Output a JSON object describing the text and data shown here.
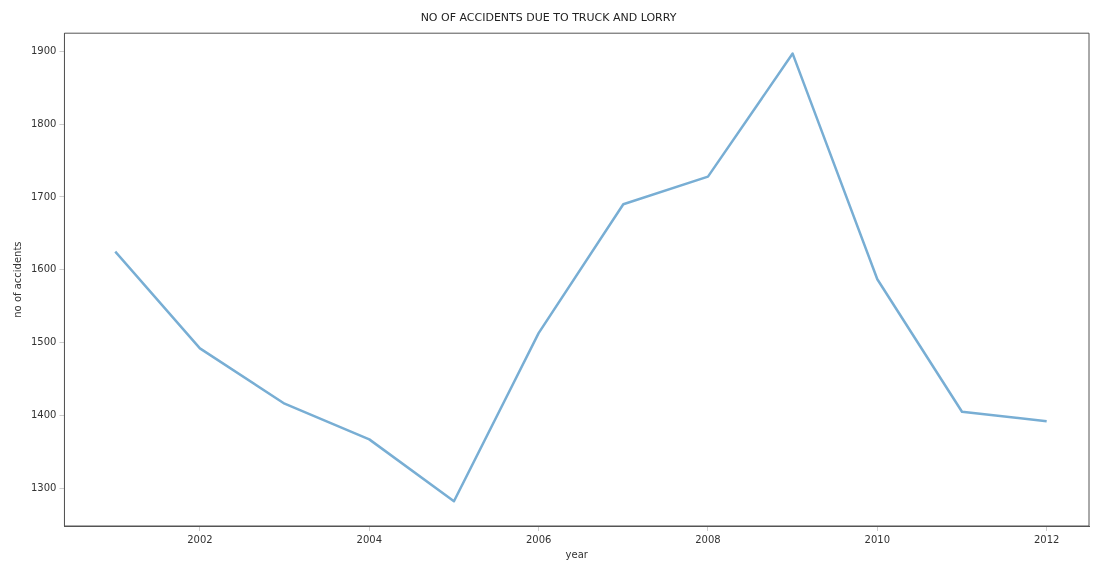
{
  "chart_data": {
    "type": "line",
    "title": "NO OF ACCIDENTS DUE TO TRUCK AND LORRY",
    "xlabel": "year",
    "ylabel": "no of accidents",
    "x": [
      2001,
      2002,
      2003,
      2004,
      2005,
      2006,
      2007,
      2008,
      2009,
      2010,
      2011,
      2012
    ],
    "series": [
      {
        "color": "#78aed4",
        "values": [
          1625,
          1492,
          1416,
          1367,
          1282,
          1513,
          1690,
          1728,
          1897,
          1587,
          1405,
          1392
        ]
      }
    ],
    "xlim": [
      2000.4,
      2012.5
    ],
    "xticks": [
      2002,
      2004,
      2006,
      2008,
      2010,
      2012
    ],
    "ylim": [
      1248,
      1925
    ],
    "yticks": [
      1300,
      1400,
      1500,
      1600,
      1700,
      1800,
      1900
    ],
    "grid": false,
    "legend": false,
    "marker": "none",
    "line_style": "solid"
  }
}
